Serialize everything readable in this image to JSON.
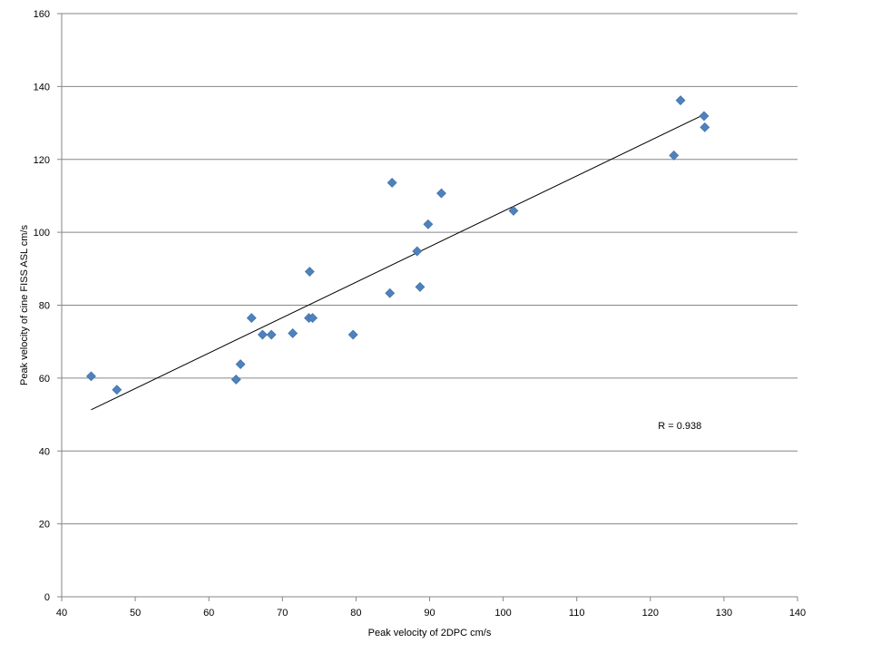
{
  "chart_data": {
    "type": "scatter",
    "title": "",
    "xlabel": "Peak velocity of 2DPC cm/s",
    "ylabel": "Peak velocity of cine FISS ASL cm/s",
    "xlim": [
      40,
      140
    ],
    "ylim": [
      0,
      160
    ],
    "xticks": [
      40,
      50,
      60,
      70,
      80,
      90,
      100,
      110,
      120,
      130,
      140
    ],
    "yticks": [
      0,
      20,
      40,
      60,
      80,
      100,
      120,
      140,
      160
    ],
    "grid": "horizontal",
    "legend": "none",
    "marker": "diamond",
    "marker_color": "#4f81bd",
    "series": [
      {
        "x": [
          44.0,
          47.5,
          63.7,
          64.3,
          65.8,
          67.3,
          68.5,
          71.4,
          73.6,
          74.1,
          73.7,
          79.6,
          84.6,
          84.9,
          88.3,
          88.7,
          89.8,
          91.6,
          101.4,
          123.2,
          124.1,
          127.3,
          127.4
        ],
        "y": [
          60.5,
          56.8,
          59.6,
          63.8,
          76.5,
          71.9,
          71.9,
          72.3,
          76.5,
          76.5,
          89.2,
          71.9,
          83.3,
          113.6,
          94.8,
          85.0,
          102.2,
          110.7,
          105.9,
          121.1,
          136.2,
          131.9,
          128.8
        ]
      }
    ],
    "trendline": {
      "type": "linear",
      "x_from": 44.0,
      "x_to": 127.3,
      "y_from": 51.3,
      "y_to": 132.3
    },
    "annotations": [
      {
        "text": "R = 0.938",
        "x": 124,
        "y": 47
      }
    ]
  }
}
